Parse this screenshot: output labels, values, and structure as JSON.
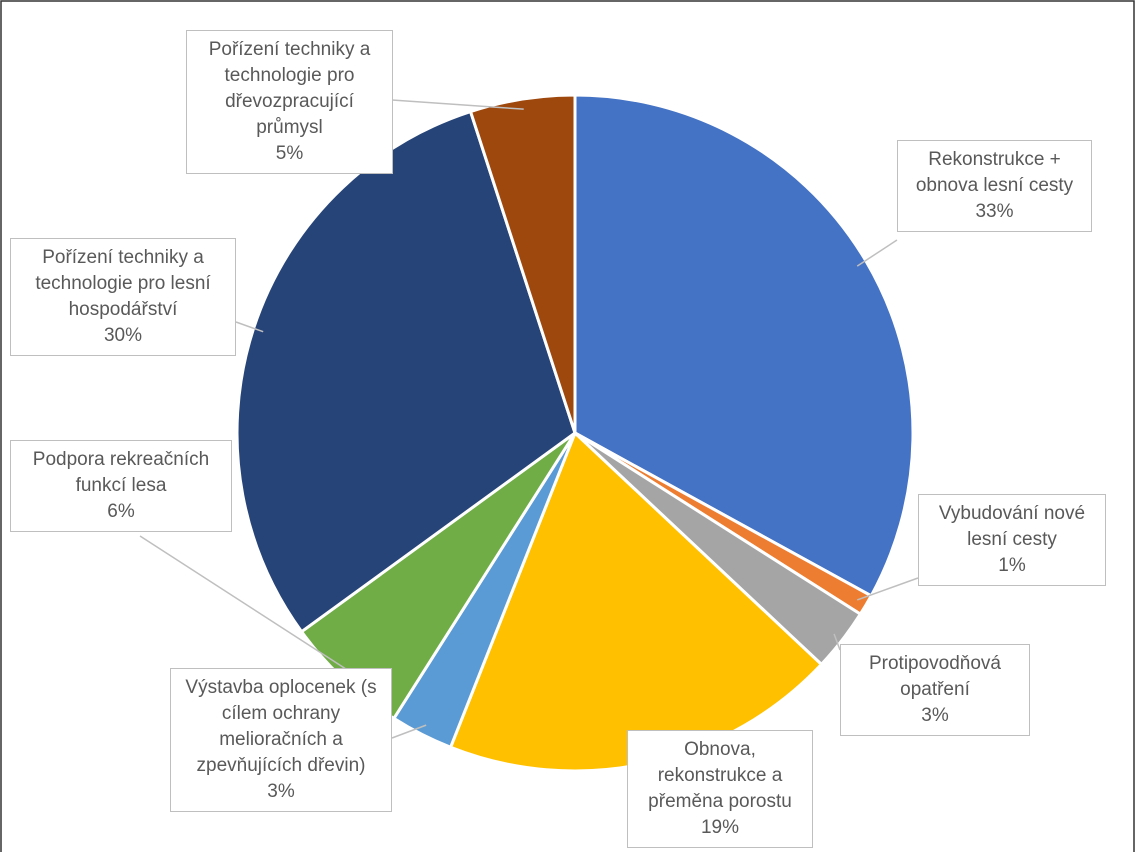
{
  "chart_data": {
    "type": "pie",
    "categories": [
      "Rekonstrukce + obnova lesní cesty",
      "Vybudování nové lesní cesty",
      "Protipovodňová opatření",
      "Obnova, rekonstrukce a přeměna porostu",
      "Výstavba oplocenek (s cílem ochrany melioračních a zpevňujících dřevin)",
      "Podpora rekreačních funkcí lesa",
      "Pořízení techniky a technologie pro lesní hospodářství",
      "Pořízení techniky a technologie pro dřevozpracující průmysl"
    ],
    "values": [
      33,
      1,
      3,
      19,
      3,
      6,
      30,
      5
    ],
    "value_labels": [
      "33%",
      "1%",
      "3%",
      "19%",
      "3%",
      "6%",
      "30%",
      "5%"
    ],
    "colors": [
      "#4472c4",
      "#ed7d31",
      "#a5a5a5",
      "#ffc000",
      "#5b9bd5",
      "#70ad47",
      "#264478",
      "#9e480e"
    ]
  }
}
